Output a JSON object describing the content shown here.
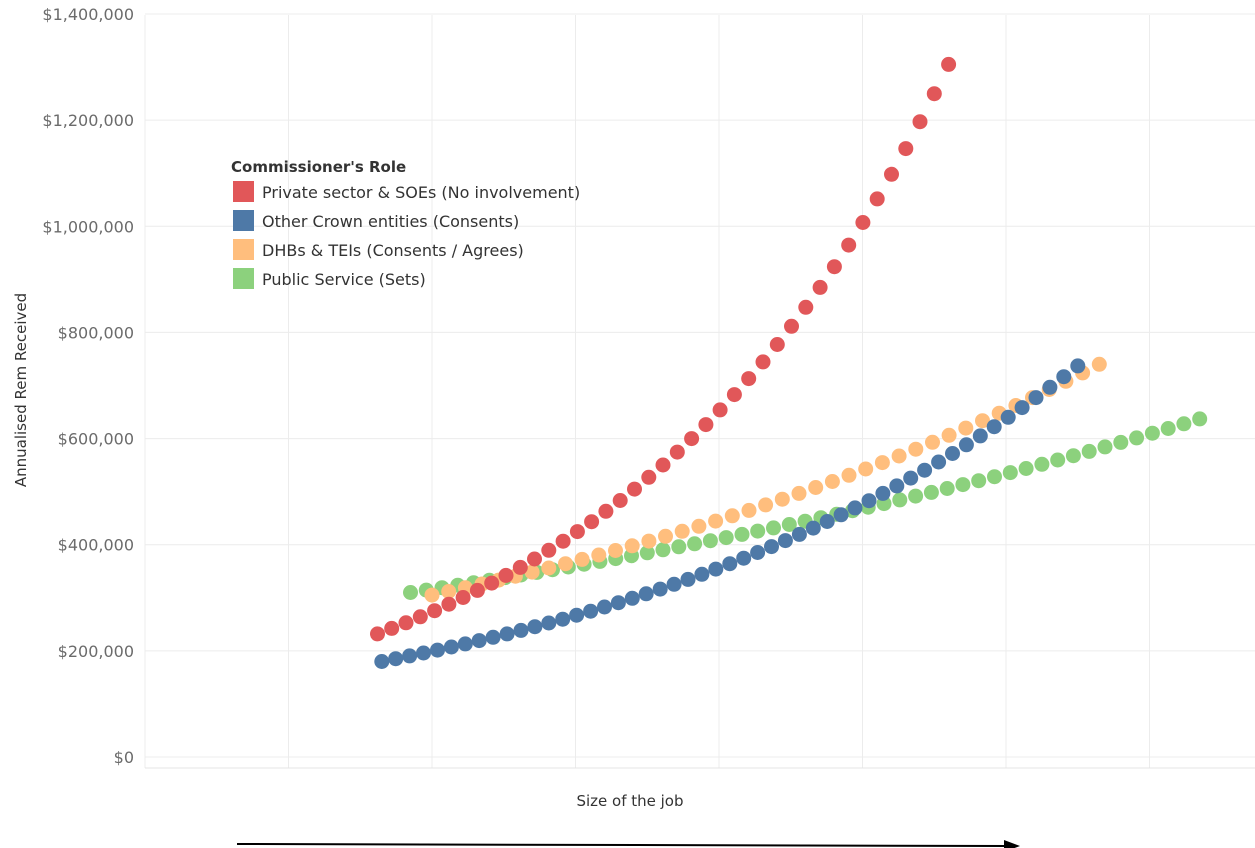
{
  "chart_data": {
    "type": "scatter",
    "title": "",
    "xlabel": "Size of the job",
    "ylabel": "Annualised Rem Received",
    "ylim": [
      0,
      1400000
    ],
    "y_ticks": [
      {
        "value": 0,
        "label": "$0"
      },
      {
        "value": 200000,
        "label": "$200,000"
      },
      {
        "value": 400000,
        "label": "$400,000"
      },
      {
        "value": 600000,
        "label": "$600,000"
      },
      {
        "value": 800000,
        "label": "$800,000"
      },
      {
        "value": 1000000,
        "label": "$1,000,000"
      },
      {
        "value": 1200000,
        "label": "$1,200,000"
      },
      {
        "value": 1400000,
        "label": "$1,400,000"
      }
    ],
    "x_gridlines": 7,
    "x_axis_arrow": true,
    "grid": true,
    "legend": {
      "title": "Commissioner's Role",
      "placement": "top-left"
    },
    "series": [
      {
        "name": "Private sector & SOEs (No involvement)",
        "color": "#e15759",
        "x_start": 1.62,
        "x_end": 5.6,
        "y_start": 232000,
        "y_end": 1305000,
        "points": 41,
        "curve": "exponential"
      },
      {
        "name": "Other Crown entities (Consents)",
        "color": "#4e79a7",
        "x_start": 1.65,
        "x_end": 6.5,
        "y_start": 180000,
        "y_end": 737000,
        "points": 51,
        "curve": "exponential"
      },
      {
        "name": "DHBs & TEIs (Consents / Agrees)",
        "color": "#ffbe7d",
        "x_start": 2.0,
        "x_end": 6.65,
        "y_start": 305000,
        "y_end": 740000,
        "points": 41,
        "curve": "exponential"
      },
      {
        "name": "Public Service (Sets)",
        "color": "#8cd17d",
        "x_start": 1.85,
        "x_end": 7.35,
        "y_start": 310000,
        "y_end": 637000,
        "points": 51,
        "curve": "exponential"
      }
    ]
  }
}
